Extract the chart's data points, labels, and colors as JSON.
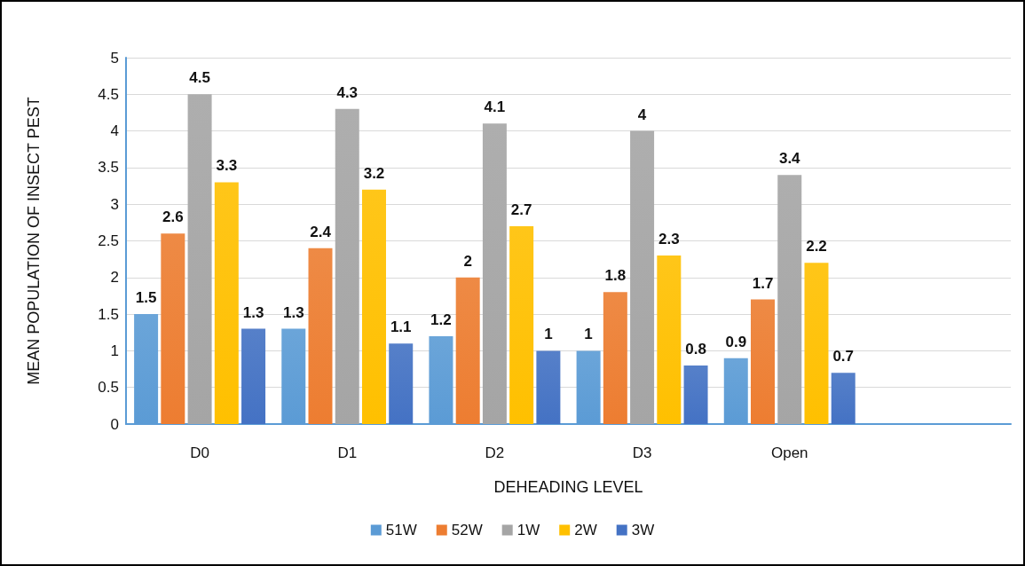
{
  "chart_data": {
    "type": "bar",
    "xlabel": "DEHEADING LEVEL",
    "ylabel": "MEAN POPULATION OF INSECT PEST",
    "categories": [
      "D0",
      "D1",
      "D2",
      "D3",
      "Open",
      null
    ],
    "series": [
      {
        "name": "51W",
        "color": "#5b9bd5",
        "values": [
          1.5,
          1.3,
          1.2,
          1,
          0.9,
          null
        ]
      },
      {
        "name": "52W",
        "color": "#ed7d31",
        "values": [
          2.6,
          2.4,
          2,
          1.8,
          1.7,
          null
        ]
      },
      {
        "name": "1W",
        "color": "#a5a5a5",
        "values": [
          4.5,
          4.3,
          4.1,
          4,
          3.4,
          null
        ]
      },
      {
        "name": "2W",
        "color": "#ffc000",
        "values": [
          3.3,
          3.2,
          2.7,
          2.3,
          2.2,
          null
        ]
      },
      {
        "name": "3W",
        "color": "#4472c4",
        "values": [
          1.3,
          1.1,
          1,
          0.8,
          0.7,
          null
        ]
      }
    ],
    "ylim": [
      0,
      5
    ],
    "yticks": [
      0,
      0.5,
      1,
      1.5,
      2,
      2.5,
      3,
      3.5,
      4,
      4.5,
      5
    ],
    "grid": "y",
    "legend": "bottom",
    "data_labels": true
  }
}
